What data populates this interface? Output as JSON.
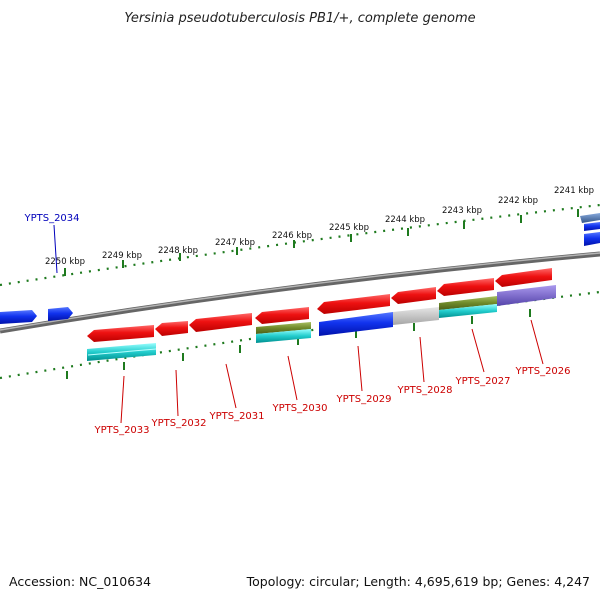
{
  "title": "Yersinia pseudotuberculosis PB1/+, complete genome",
  "footer": {
    "accession": "Accession: NC_010634",
    "summary": "Topology: circular; Length: 4,695,619 bp; Genes: 4,247"
  },
  "kbp_labels": [
    "2250 kbp",
    "2249 kbp",
    "2248 kbp",
    "2247 kbp",
    "2246 kbp",
    "2245 kbp",
    "2244 kbp",
    "2243 kbp",
    "2242 kbp",
    "2241 kbp"
  ],
  "gene_labels": {
    "YPTS_2034": "YPTS_2034",
    "YPTS_2033": "YPTS_2033",
    "YPTS_2032": "YPTS_2032",
    "YPTS_2031": "YPTS_2031",
    "YPTS_2030": "YPTS_2030",
    "YPTS_2029": "YPTS_2029",
    "YPTS_2028": "YPTS_2028",
    "YPTS_2027": "YPTS_2027",
    "YPTS_2026": "YPTS_2026"
  },
  "colors": {
    "backbone": "#7a7a7a",
    "tick": "#1e7a1e",
    "cds_red": "#ee1111",
    "gene_blue": "#1133ee",
    "cyan": "#22cccc",
    "olive": "#6f8a2a",
    "grey": "#b8b8b8",
    "purple": "#7766cc",
    "steel": "#4477aa",
    "label_red": "#cc0000",
    "label_blue": "#0000bb"
  }
}
